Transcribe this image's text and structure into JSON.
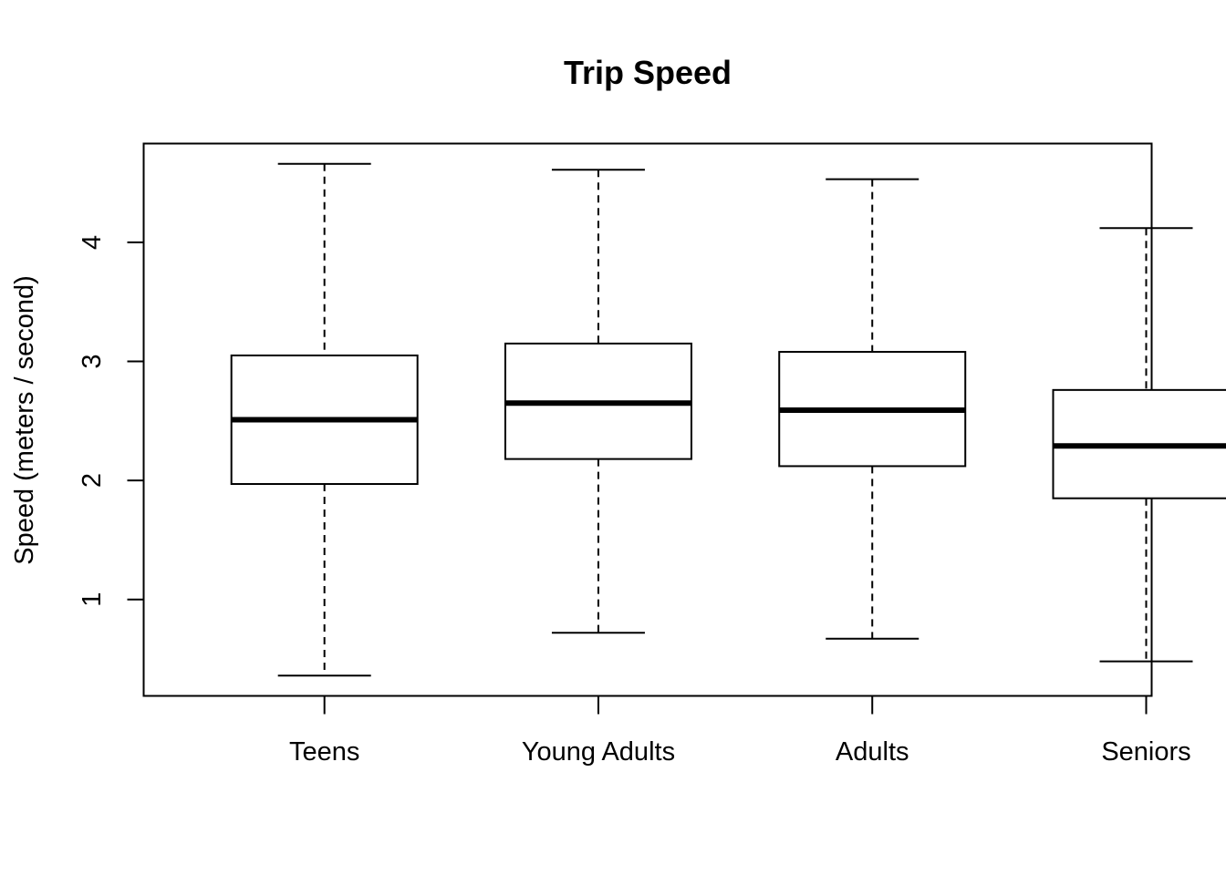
{
  "chart_data": {
    "type": "boxplot",
    "title": "Trip Speed",
    "xlabel": "",
    "ylabel": "Speed (meters / second)",
    "categories": [
      "Teens",
      "Young Adults",
      "Adults",
      "Seniors"
    ],
    "boxes": [
      {
        "category": "Teens",
        "whisker_low": 0.36,
        "q1": 1.97,
        "median": 2.51,
        "q3": 3.05,
        "whisker_high": 4.66
      },
      {
        "category": "Young Adults",
        "whisker_low": 0.72,
        "q1": 2.18,
        "median": 2.65,
        "q3": 3.15,
        "whisker_high": 4.61
      },
      {
        "category": "Adults",
        "whisker_low": 0.67,
        "q1": 2.12,
        "median": 2.59,
        "q3": 3.08,
        "whisker_high": 4.53
      },
      {
        "category": "Seniors",
        "whisker_low": 0.48,
        "q1": 1.85,
        "median": 2.29,
        "q3": 2.76,
        "whisker_high": 4.12
      }
    ],
    "yticks": [
      1,
      2,
      3,
      4
    ],
    "ylim": [
      0.19,
      4.83
    ],
    "grid": false,
    "legend": "none",
    "colors": {
      "box_fill": "#ffffff",
      "stroke": "#000000"
    }
  }
}
